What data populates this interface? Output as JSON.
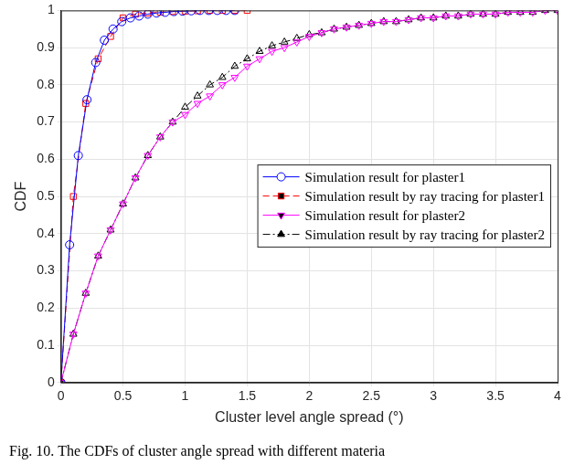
{
  "chart_data": {
    "type": "line",
    "title": "Fig. 10. The CDFs of cluster angle spread with different materia",
    "x_label": "Cluster level angle spread (°)",
    "y_label": "CDF",
    "xlim": [
      0,
      4
    ],
    "xticks": [
      0,
      0.5,
      1,
      1.5,
      2,
      2.5,
      3,
      3.5,
      4
    ],
    "ylim": [
      0,
      1
    ],
    "yticks": [
      0,
      0.1,
      0.2,
      0.3,
      0.4,
      0.5,
      0.6,
      0.7,
      0.8,
      0.9,
      1
    ],
    "grid": true,
    "legend": "right",
    "series": [
      {
        "name": "Simulation result for plaster1",
        "color": "#0000ff",
        "marker": "circle",
        "line_style": "solid",
        "x": [
          0,
          0.07,
          0.14,
          0.21,
          0.28,
          0.35,
          0.42,
          0.49,
          0.56,
          0.63,
          0.7,
          0.77,
          0.84,
          0.91,
          0.98,
          1.05,
          1.12,
          1.19,
          1.26,
          1.33,
          1.4
        ],
        "values": [
          0,
          0.37,
          0.61,
          0.76,
          0.86,
          0.92,
          0.95,
          0.97,
          0.98,
          0.985,
          0.99,
          0.993,
          0.995,
          0.997,
          0.998,
          0.999,
          1,
          1,
          1,
          1,
          1
        ]
      },
      {
        "name": "Simulation result by ray tracing for plaster1",
        "color": "#ff0000",
        "marker": "square",
        "line_style": "dashed",
        "x": [
          0,
          0.1,
          0.2,
          0.3,
          0.4,
          0.5,
          0.6,
          0.7,
          0.8,
          0.9,
          1,
          1.1,
          1.2,
          1.3,
          1.4,
          1.5
        ],
        "values": [
          0,
          0.5,
          0.75,
          0.87,
          0.93,
          0.98,
          0.99,
          0.993,
          0.995,
          0.997,
          0.998,
          0.999,
          1,
          1,
          1,
          1
        ]
      },
      {
        "name": "Simulation result for plaster2",
        "color": "#ff00ff",
        "marker": "triangle_down",
        "line_style": "solid",
        "x": [
          0,
          0.1,
          0.2,
          0.3,
          0.4,
          0.5,
          0.6,
          0.7,
          0.8,
          0.9,
          1,
          1.1,
          1.2,
          1.3,
          1.4,
          1.5,
          1.6,
          1.7,
          1.8,
          1.9,
          2,
          2.1,
          2.2,
          2.3,
          2.4,
          2.5,
          2.6,
          2.7,
          2.8,
          2.9,
          3,
          3.1,
          3.2,
          3.3,
          3.4,
          3.5,
          3.6,
          3.7,
          3.8,
          3.9,
          4
        ],
        "values": [
          0,
          0.13,
          0.24,
          0.34,
          0.41,
          0.48,
          0.55,
          0.61,
          0.66,
          0.7,
          0.72,
          0.75,
          0.77,
          0.8,
          0.82,
          0.85,
          0.87,
          0.89,
          0.9,
          0.915,
          0.93,
          0.94,
          0.95,
          0.955,
          0.96,
          0.965,
          0.97,
          0.97,
          0.975,
          0.98,
          0.98,
          0.985,
          0.985,
          0.99,
          0.99,
          0.99,
          0.995,
          0.995,
          0.995,
          1,
          1
        ]
      },
      {
        "name": "Simulation result by ray tracing for plaster2",
        "color": "#000000",
        "marker": "triangle",
        "line_style": "dashdot",
        "x": [
          0,
          0.1,
          0.2,
          0.3,
          0.4,
          0.5,
          0.6,
          0.7,
          0.8,
          0.9,
          1,
          1.1,
          1.2,
          1.3,
          1.4,
          1.5,
          1.6,
          1.7,
          1.8,
          1.9,
          2,
          2.1,
          2.2,
          2.3,
          2.4,
          2.5,
          2.6,
          2.7,
          2.8,
          2.9,
          3,
          3.1,
          3.2,
          3.3,
          3.4,
          3.5,
          3.6,
          3.7,
          3.8,
          3.9,
          4
        ],
        "values": [
          0,
          0.13,
          0.24,
          0.34,
          0.41,
          0.48,
          0.55,
          0.61,
          0.66,
          0.7,
          0.74,
          0.77,
          0.8,
          0.82,
          0.85,
          0.87,
          0.89,
          0.905,
          0.915,
          0.925,
          0.935,
          0.94,
          0.95,
          0.955,
          0.96,
          0.965,
          0.97,
          0.97,
          0.975,
          0.98,
          0.98,
          0.985,
          0.985,
          0.99,
          0.99,
          0.99,
          0.995,
          0.995,
          0.995,
          1,
          1
        ]
      }
    ]
  }
}
